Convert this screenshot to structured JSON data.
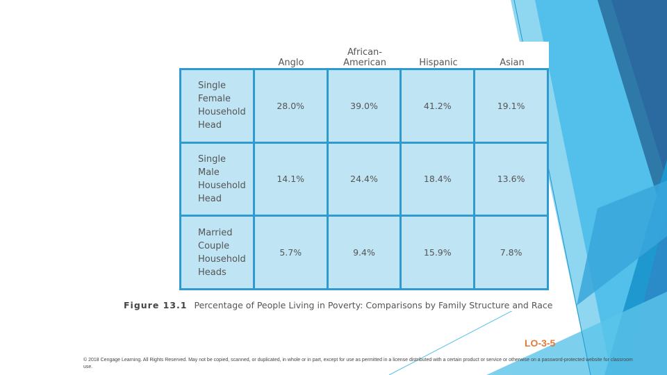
{
  "figure": {
    "columns": [
      "Anglo",
      "African-\nAmerican",
      "Hispanic",
      "Asian"
    ],
    "rows": [
      {
        "label": "Single\nFemale\nHousehold\nHead",
        "values": [
          "28.0%",
          "39.0%",
          "41.2%",
          "19.1%"
        ]
      },
      {
        "label": "Single\nMale\nHousehold\nHead",
        "values": [
          "14.1%",
          "24.4%",
          "18.4%",
          "13.6%"
        ]
      },
      {
        "label": "Married\nCouple\nHousehold\nHeads",
        "values": [
          "5.7%",
          "9.4%",
          "15.9%",
          "7.8%"
        ]
      }
    ],
    "caption_label": "Figure 13.1",
    "caption_text": "Percentage of People Living in Poverty: Comparisons by Family Structure and Race"
  },
  "slide": {
    "lo": "LO-3-5",
    "copyright": "© 2018 Cengage Learning. All Rights Reserved. May not be copied, scanned, or duplicated, in whole or in part, except for use as permitted in a license distributed with a certain product or service or otherwise on a password-protected website for classroom use."
  },
  "colors": {
    "grid": "#2e9ad0",
    "cell": "#bfe4f4",
    "lo": "#e07b39"
  }
}
